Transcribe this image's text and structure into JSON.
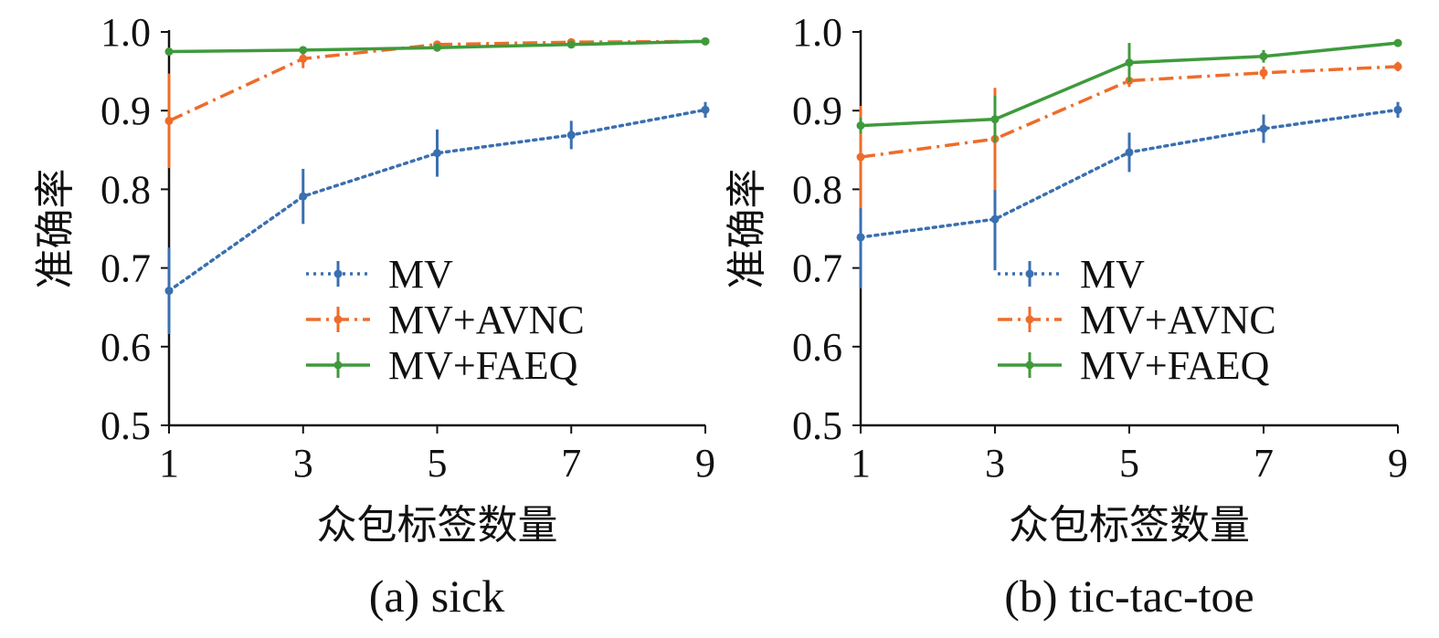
{
  "colors": {
    "MV": "#3a6fb0",
    "MV+AVNC": "#ee6c2a",
    "MV+FAEQ": "#3f9a3c"
  },
  "chart_data": [
    {
      "type": "line",
      "caption": "(a) sick",
      "xlabel": "众包标签数量",
      "ylabel": "准确率",
      "x": [
        1,
        3,
        5,
        7,
        9
      ],
      "xticks": [
        "1",
        "3",
        "5",
        "7",
        "9"
      ],
      "yticks": [
        "0.5",
        "0.6",
        "0.7",
        "0.8",
        "0.9",
        "1.0"
      ],
      "xlim": [
        1,
        9
      ],
      "ylim": [
        0.5,
        1.0
      ],
      "legend_position": "lower-right",
      "series": [
        {
          "name": "MV",
          "style": "dotted",
          "values": [
            0.671,
            0.791,
            0.846,
            0.869,
            0.901
          ],
          "errors": [
            0.055,
            0.035,
            0.03,
            0.018,
            0.01
          ]
        },
        {
          "name": "MV+AVNC",
          "style": "dashdot",
          "values": [
            0.887,
            0.966,
            0.984,
            0.987,
            0.988
          ],
          "errors": [
            0.06,
            0.012,
            0.005,
            0.003,
            0.002
          ]
        },
        {
          "name": "MV+FAEQ",
          "style": "solid",
          "values": [
            0.975,
            0.977,
            0.98,
            0.984,
            0.988
          ],
          "errors": [
            0.004,
            0.003,
            0.003,
            0.003,
            0.002
          ]
        }
      ]
    },
    {
      "type": "line",
      "caption": "(b) tic-tac-toe",
      "xlabel": "众包标签数量",
      "ylabel": "准确率",
      "x": [
        1,
        3,
        5,
        7,
        9
      ],
      "xticks": [
        "1",
        "3",
        "5",
        "7",
        "9"
      ],
      "yticks": [
        "0.5",
        "0.6",
        "0.7",
        "0.8",
        "0.9",
        "1.0"
      ],
      "xlim": [
        1,
        9
      ],
      "ylim": [
        0.5,
        1.0
      ],
      "legend_position": "lower-right",
      "series": [
        {
          "name": "MV",
          "style": "dotted",
          "values": [
            0.739,
            0.762,
            0.847,
            0.877,
            0.901
          ],
          "errors": [
            0.065,
            0.065,
            0.025,
            0.018,
            0.01
          ]
        },
        {
          "name": "MV+AVNC",
          "style": "dashdot",
          "values": [
            0.841,
            0.864,
            0.938,
            0.948,
            0.956
          ],
          "errors": [
            0.065,
            0.065,
            0.008,
            0.008,
            0.006
          ]
        },
        {
          "name": "MV+FAEQ",
          "style": "solid",
          "values": [
            0.881,
            0.889,
            0.961,
            0.969,
            0.986
          ],
          "errors": [
            0.01,
            0.03,
            0.025,
            0.008,
            0.003
          ]
        }
      ]
    }
  ]
}
